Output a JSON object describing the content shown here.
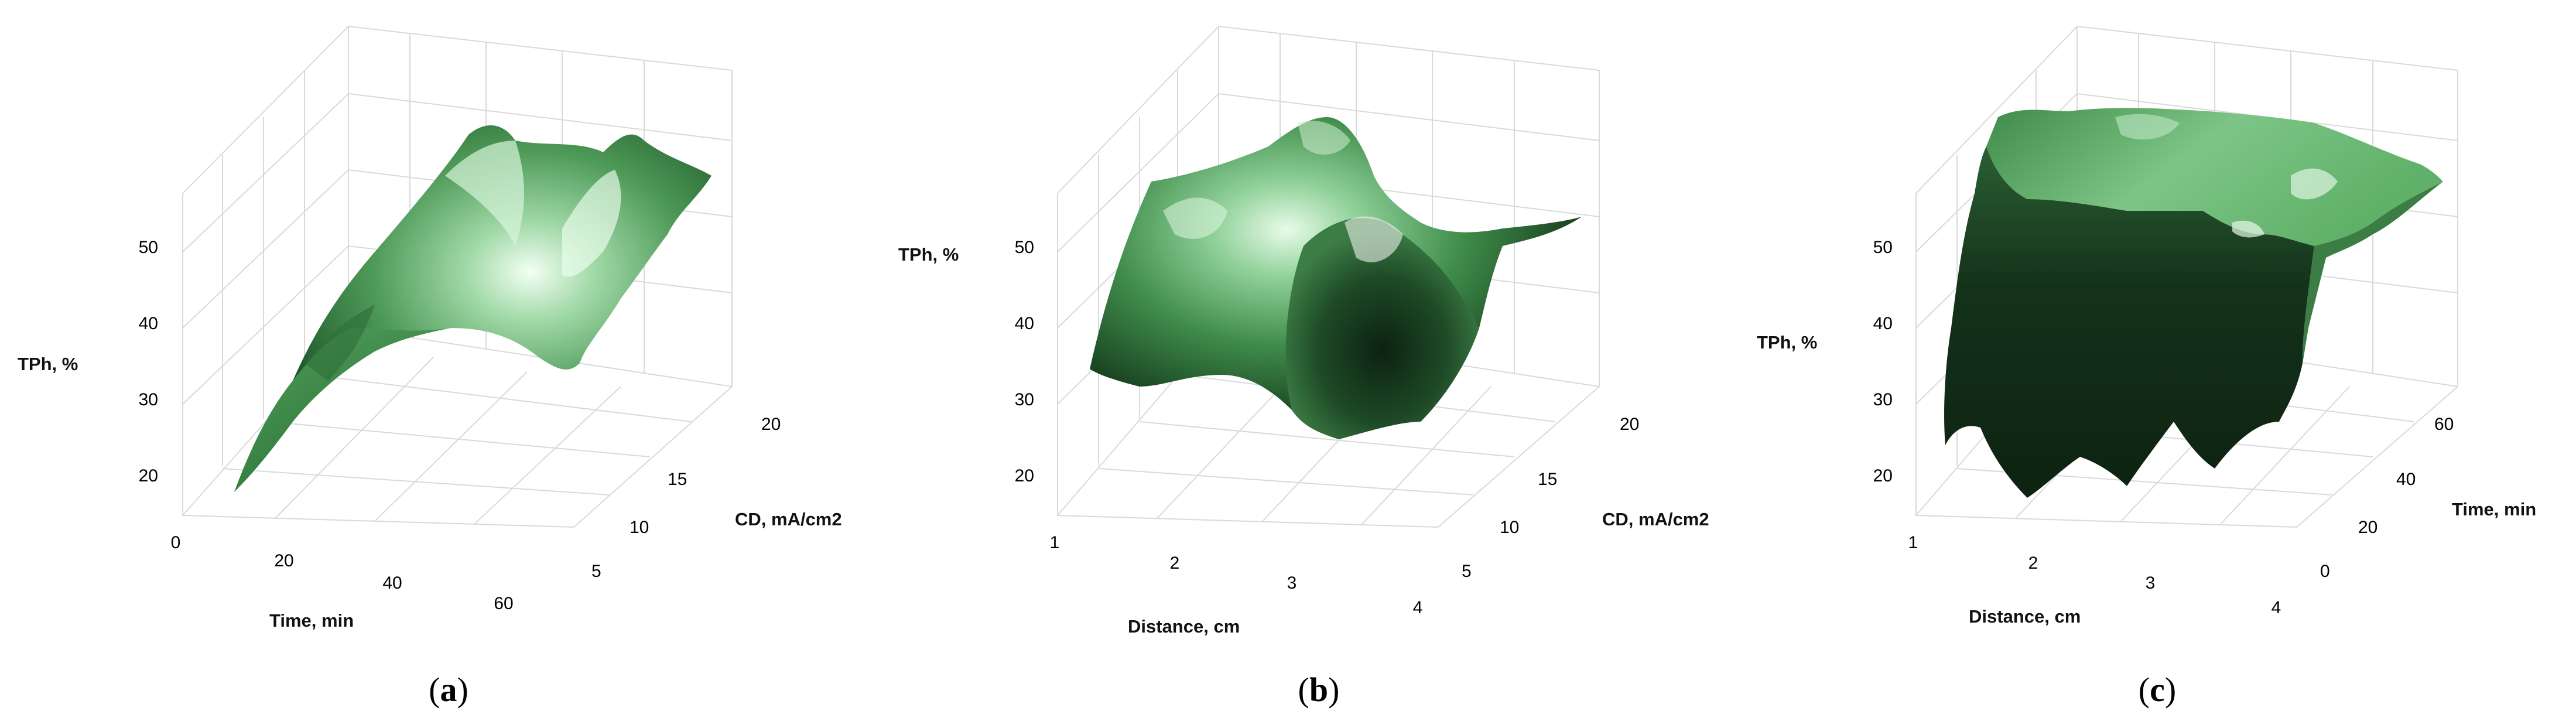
{
  "figure": {
    "surface_color_light": "#e4f7e6",
    "surface_color_mid": "#4f9a58",
    "surface_color_dark": "#0f2a16",
    "grid_color": "#d9d9d9"
  },
  "chart_data": [
    {
      "id": "a",
      "type": "surface3d",
      "panel_label": "a",
      "zlabel": "TPh, %",
      "xlabel": "Time, min",
      "ylabel": "CD, mA/cm2",
      "zticks": [
        "20",
        "30",
        "40",
        "50"
      ],
      "xticks": [
        "0",
        "20",
        "40",
        "60"
      ],
      "yticks": [
        "5",
        "10",
        "15",
        "20"
      ],
      "zlim": [
        17,
        57
      ],
      "xlim": [
        0,
        70
      ],
      "ylim": [
        2,
        22
      ]
    },
    {
      "id": "b",
      "type": "surface3d",
      "panel_label": "b",
      "zlabel": "TPh, %",
      "xlabel": "Distance, cm",
      "ylabel": "CD, mA/cm2",
      "zticks": [
        "20",
        "30",
        "40",
        "50"
      ],
      "xticks": [
        "1",
        "2",
        "3",
        "4"
      ],
      "yticks": [
        "5",
        "10",
        "15",
        "20"
      ],
      "zlim": [
        17,
        57
      ],
      "xlim": [
        0.9,
        4.3
      ],
      "ylim": [
        2,
        22
      ]
    },
    {
      "id": "c",
      "type": "surface3d",
      "panel_label": "c",
      "zlabel": "TPh, %",
      "xlabel": "Distance, cm",
      "ylabel": "Time, min",
      "zticks": [
        "20",
        "30",
        "40",
        "50"
      ],
      "xticks": [
        "1",
        "2",
        "3",
        "4"
      ],
      "yticks": [
        "0",
        "20",
        "40",
        "60"
      ],
      "zlim": [
        17,
        57
      ],
      "xlim": [
        0.9,
        4.3
      ],
      "ylim": [
        -5,
        70
      ]
    }
  ]
}
